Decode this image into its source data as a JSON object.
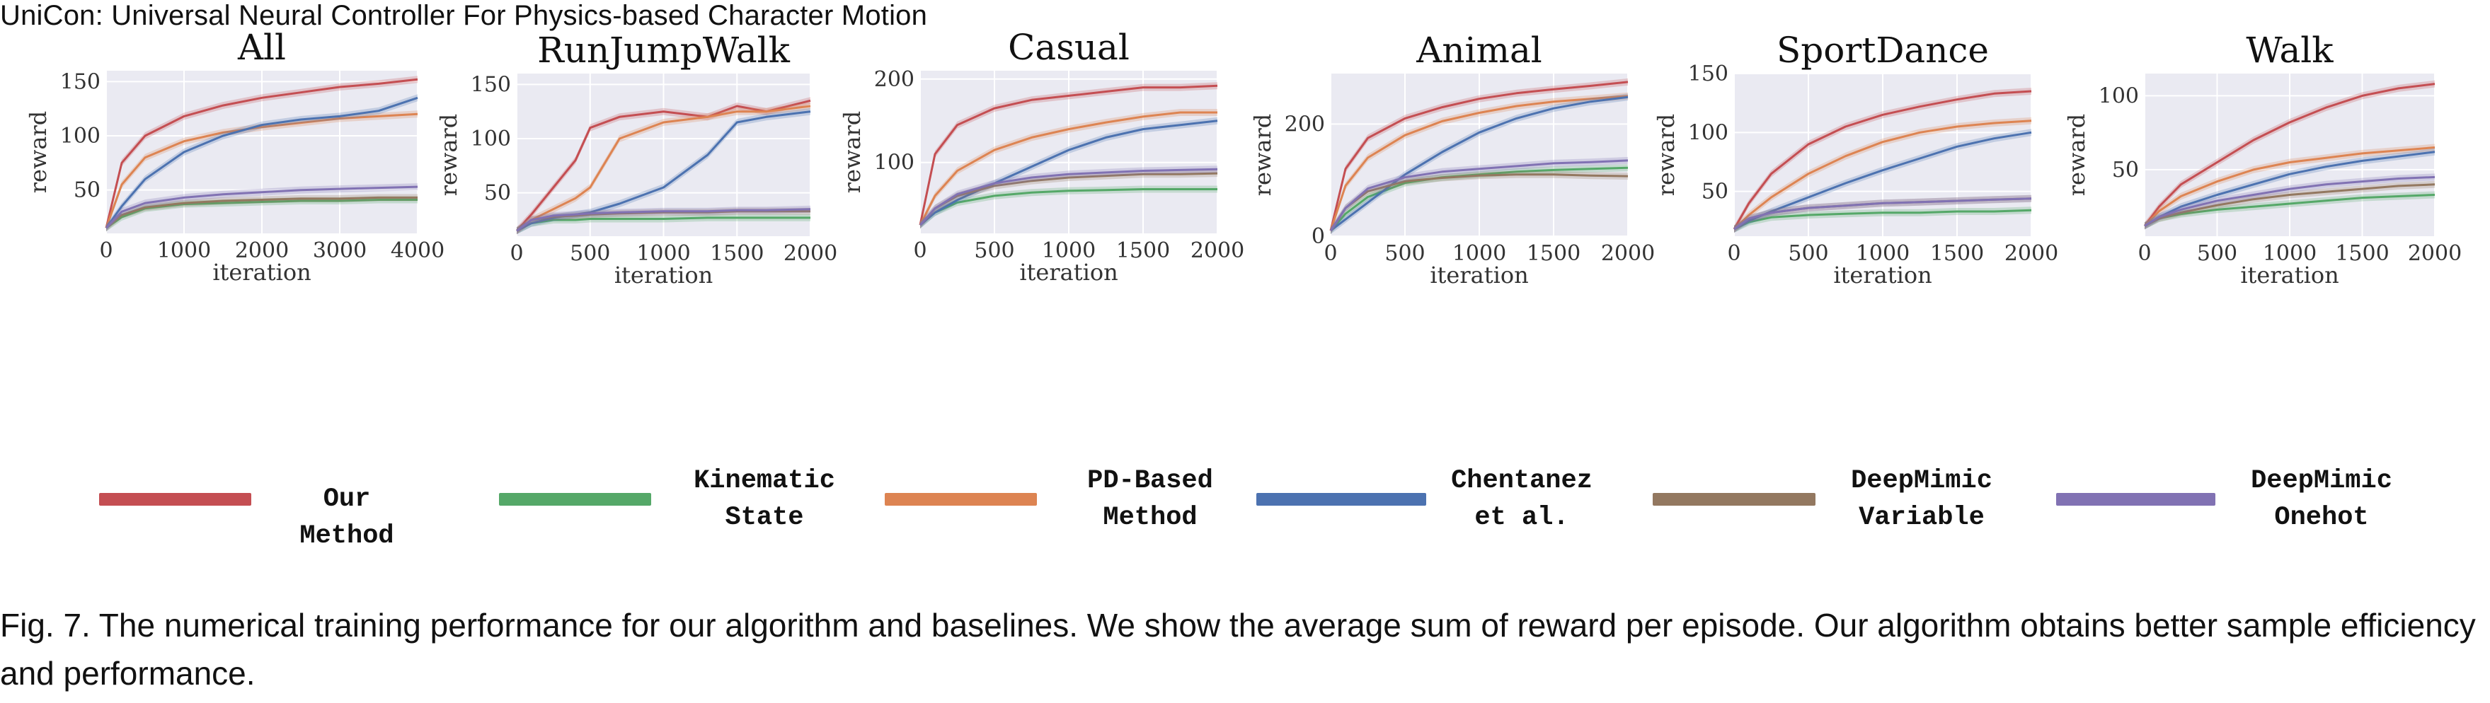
{
  "header": {
    "title": "UniCon: Universal Neural Controller For Physics-based Character Motion"
  },
  "legend": {
    "items": [
      {
        "label": "Our Method",
        "color": "#c44e52"
      },
      {
        "label": "Kinematic\nState",
        "color": "#55a868"
      },
      {
        "label": "PD-Based\nMethod",
        "color": "#dd8452"
      },
      {
        "label": "Chentanez\net al.",
        "color": "#4c72b0"
      },
      {
        "label": "DeepMimic\nVariable",
        "color": "#937860"
      },
      {
        "label": "DeepMimic\nOnehot",
        "color": "#8172b3"
      }
    ]
  },
  "caption": {
    "text": "Fig. 7.  The numerical training performance for our algorithm and baselines. We show the average sum of reward per episode. Our algorithm obtains better sample efficiency and performance."
  },
  "chart_data": [
    {
      "type": "line",
      "title": "All",
      "xlabel": "iteration",
      "ylabel": "reward",
      "xlim": [
        0,
        4000
      ],
      "ylim": [
        10,
        160
      ],
      "xticks": [
        0,
        1000,
        2000,
        3000,
        4000
      ],
      "yticks": [
        50,
        100,
        150
      ],
      "grid": true,
      "series": [
        {
          "color": "#c44e52",
          "x": [
            0,
            200,
            500,
            1000,
            1500,
            2000,
            2500,
            3000,
            3500,
            4000
          ],
          "values": [
            15,
            75,
            100,
            118,
            128,
            135,
            140,
            145,
            148,
            152
          ]
        },
        {
          "color": "#55a868",
          "x": [
            0,
            200,
            500,
            1000,
            1500,
            2000,
            2500,
            3000,
            3500,
            4000
          ],
          "values": [
            15,
            25,
            33,
            37,
            38,
            39,
            40,
            40,
            41,
            41
          ]
        },
        {
          "color": "#dd8452",
          "x": [
            0,
            200,
            500,
            1000,
            1500,
            2000,
            2500,
            3000,
            3500,
            4000
          ],
          "values": [
            15,
            55,
            80,
            95,
            103,
            108,
            112,
            116,
            118,
            120
          ]
        },
        {
          "color": "#4c72b0",
          "x": [
            0,
            200,
            500,
            1000,
            1500,
            2000,
            2500,
            3000,
            3500,
            4000
          ],
          "values": [
            15,
            35,
            60,
            85,
            100,
            110,
            115,
            118,
            123,
            135
          ]
        },
        {
          "color": "#937860",
          "x": [
            0,
            200,
            500,
            1000,
            1500,
            2000,
            2500,
            3000,
            3500,
            4000
          ],
          "values": [
            15,
            27,
            34,
            38,
            40,
            41,
            42,
            42,
            43,
            43
          ]
        },
        {
          "color": "#8172b3",
          "x": [
            0,
            200,
            500,
            1000,
            1500,
            2000,
            2500,
            3000,
            3500,
            4000
          ],
          "values": [
            15,
            30,
            38,
            43,
            46,
            48,
            50,
            51,
            52,
            53
          ]
        }
      ]
    },
    {
      "type": "line",
      "title": "RunJumpWalk",
      "xlabel": "iteration",
      "ylabel": "reward",
      "xlim": [
        0,
        2000
      ],
      "ylim": [
        10,
        160
      ],
      "xticks": [
        0,
        500,
        1000,
        1500,
        2000
      ],
      "yticks": [
        50,
        100,
        150
      ],
      "grid": true,
      "series": [
        {
          "color": "#c44e52",
          "x": [
            0,
            100,
            250,
            400,
            500,
            700,
            1000,
            1300,
            1500,
            1700,
            2000
          ],
          "values": [
            15,
            30,
            55,
            80,
            110,
            120,
            125,
            120,
            130,
            125,
            135
          ]
        },
        {
          "color": "#55a868",
          "x": [
            0,
            100,
            250,
            400,
            500,
            700,
            1000,
            1300,
            1500,
            1700,
            2000
          ],
          "values": [
            15,
            22,
            25,
            25,
            26,
            26,
            26,
            27,
            27,
            27,
            27
          ]
        },
        {
          "color": "#dd8452",
          "x": [
            0,
            100,
            250,
            400,
            500,
            700,
            1000,
            1300,
            1500,
            1700,
            2000
          ],
          "values": [
            15,
            25,
            35,
            45,
            55,
            100,
            115,
            120,
            125,
            125,
            130
          ]
        },
        {
          "color": "#4c72b0",
          "x": [
            0,
            100,
            250,
            400,
            500,
            700,
            1000,
            1300,
            1500,
            1700,
            2000
          ],
          "values": [
            15,
            22,
            27,
            30,
            32,
            40,
            55,
            85,
            115,
            120,
            125
          ]
        },
        {
          "color": "#937860",
          "x": [
            0,
            100,
            250,
            400,
            500,
            700,
            1000,
            1300,
            1500,
            1700,
            2000
          ],
          "values": [
            15,
            25,
            28,
            29,
            30,
            31,
            32,
            32,
            33,
            33,
            33
          ]
        },
        {
          "color": "#8172b3",
          "x": [
            0,
            100,
            250,
            400,
            500,
            700,
            1000,
            1300,
            1500,
            1700,
            2000
          ],
          "values": [
            15,
            25,
            29,
            30,
            31,
            32,
            33,
            33,
            34,
            34,
            35
          ]
        }
      ]
    },
    {
      "type": "line",
      "title": "Casual",
      "xlabel": "iteration",
      "ylabel": "reward",
      "xlim": [
        0,
        2000
      ],
      "ylim": [
        15,
        210
      ],
      "xticks": [
        0,
        500,
        1000,
        1500,
        2000
      ],
      "yticks": [
        100,
        200
      ],
      "grid": true,
      "series": [
        {
          "color": "#c44e52",
          "x": [
            0,
            100,
            250,
            500,
            750,
            1000,
            1250,
            1500,
            1750,
            2000
          ],
          "values": [
            25,
            110,
            145,
            165,
            175,
            180,
            185,
            190,
            190,
            192
          ]
        },
        {
          "color": "#55a868",
          "x": [
            0,
            100,
            250,
            500,
            750,
            1000,
            1250,
            1500,
            1750,
            2000
          ],
          "values": [
            25,
            40,
            52,
            60,
            64,
            66,
            67,
            68,
            68,
            68
          ]
        },
        {
          "color": "#dd8452",
          "x": [
            0,
            100,
            250,
            500,
            750,
            1000,
            1250,
            1500,
            1750,
            2000
          ],
          "values": [
            25,
            60,
            90,
            115,
            130,
            140,
            148,
            155,
            160,
            160
          ]
        },
        {
          "color": "#4c72b0",
          "x": [
            0,
            100,
            250,
            500,
            750,
            1000,
            1250,
            1500,
            1750,
            2000
          ],
          "values": [
            25,
            40,
            55,
            75,
            95,
            115,
            130,
            140,
            145,
            150
          ]
        },
        {
          "color": "#937860",
          "x": [
            0,
            100,
            250,
            500,
            750,
            1000,
            1250,
            1500,
            1750,
            2000
          ],
          "values": [
            25,
            45,
            60,
            72,
            78,
            82,
            84,
            86,
            86,
            87
          ]
        },
        {
          "color": "#8172b3",
          "x": [
            0,
            100,
            250,
            500,
            750,
            1000,
            1250,
            1500,
            1750,
            2000
          ],
          "values": [
            25,
            45,
            62,
            75,
            82,
            86,
            88,
            90,
            91,
            92
          ]
        }
      ]
    },
    {
      "type": "line",
      "title": "Animal",
      "xlabel": "iteration",
      "ylabel": "reward",
      "xlim": [
        0,
        2000
      ],
      "ylim": [
        0,
        290
      ],
      "xticks": [
        0,
        500,
        1000,
        1500,
        2000
      ],
      "yticks": [
        0,
        200
      ],
      "grid": true,
      "series": [
        {
          "color": "#c44e52",
          "x": [
            0,
            100,
            250,
            500,
            750,
            1000,
            1250,
            1500,
            1750,
            2000
          ],
          "values": [
            10,
            120,
            175,
            210,
            230,
            245,
            255,
            262,
            268,
            275
          ]
        },
        {
          "color": "#55a868",
          "x": [
            0,
            100,
            250,
            500,
            750,
            1000,
            1250,
            1500,
            1750,
            2000
          ],
          "values": [
            10,
            40,
            70,
            95,
            105,
            110,
            115,
            118,
            120,
            122
          ]
        },
        {
          "color": "#dd8452",
          "x": [
            0,
            100,
            250,
            500,
            750,
            1000,
            1250,
            1500,
            1750,
            2000
          ],
          "values": [
            10,
            90,
            140,
            180,
            205,
            220,
            232,
            240,
            245,
            250
          ]
        },
        {
          "color": "#4c72b0",
          "x": [
            0,
            100,
            250,
            500,
            750,
            1000,
            1250,
            1500,
            1750,
            2000
          ],
          "values": [
            10,
            30,
            60,
            110,
            150,
            185,
            210,
            228,
            240,
            248
          ]
        },
        {
          "color": "#937860",
          "x": [
            0,
            100,
            250,
            500,
            750,
            1000,
            1250,
            1500,
            1750,
            2000
          ],
          "values": [
            10,
            50,
            80,
            98,
            104,
            108,
            110,
            110,
            108,
            107
          ]
        },
        {
          "color": "#8172b3",
          "x": [
            0,
            100,
            250,
            500,
            750,
            1000,
            1250,
            1500,
            1750,
            2000
          ],
          "values": [
            10,
            50,
            85,
            105,
            115,
            120,
            125,
            130,
            132,
            135
          ]
        }
      ]
    },
    {
      "type": "line",
      "title": "SportDance",
      "xlabel": "iteration",
      "ylabel": "reward",
      "xlim": [
        0,
        2000
      ],
      "ylim": [
        12,
        150
      ],
      "xticks": [
        0,
        500,
        1000,
        1500,
        2000
      ],
      "yticks": [
        50,
        100,
        150
      ],
      "grid": true,
      "series": [
        {
          "color": "#c44e52",
          "x": [
            0,
            100,
            250,
            500,
            750,
            1000,
            1250,
            1500,
            1750,
            2000
          ],
          "values": [
            18,
            40,
            65,
            90,
            105,
            115,
            122,
            128,
            133,
            135
          ]
        },
        {
          "color": "#55a868",
          "x": [
            0,
            100,
            250,
            500,
            750,
            1000,
            1250,
            1500,
            1750,
            2000
          ],
          "values": [
            18,
            24,
            28,
            30,
            31,
            32,
            32,
            33,
            33,
            34
          ]
        },
        {
          "color": "#dd8452",
          "x": [
            0,
            100,
            250,
            500,
            750,
            1000,
            1250,
            1500,
            1750,
            2000
          ],
          "values": [
            18,
            30,
            45,
            65,
            80,
            92,
            100,
            105,
            108,
            110
          ]
        },
        {
          "color": "#4c72b0",
          "x": [
            0,
            100,
            250,
            500,
            750,
            1000,
            1250,
            1500,
            1750,
            2000
          ],
          "values": [
            18,
            25,
            33,
            45,
            57,
            68,
            78,
            88,
            95,
            100
          ]
        },
        {
          "color": "#937860",
          "x": [
            0,
            100,
            250,
            500,
            750,
            1000,
            1250,
            1500,
            1750,
            2000
          ],
          "values": [
            18,
            27,
            32,
            36,
            38,
            40,
            41,
            42,
            43,
            44
          ]
        },
        {
          "color": "#8172b3",
          "x": [
            0,
            100,
            250,
            500,
            750,
            1000,
            1250,
            1500,
            1750,
            2000
          ],
          "values": [
            18,
            27,
            32,
            36,
            38,
            40,
            41,
            42,
            43,
            44
          ]
        }
      ]
    },
    {
      "type": "line",
      "title": "Walk",
      "xlabel": "iteration",
      "ylabel": "reward",
      "xlim": [
        0,
        2000
      ],
      "ylim": [
        5,
        115
      ],
      "xticks": [
        0,
        500,
        1000,
        1500,
        2000
      ],
      "yticks": [
        50,
        100
      ],
      "grid": true,
      "series": [
        {
          "color": "#c44e52",
          "x": [
            0,
            100,
            250,
            500,
            750,
            1000,
            1250,
            1500,
            1750,
            2000
          ],
          "values": [
            12,
            25,
            40,
            55,
            70,
            82,
            92,
            100,
            105,
            108
          ]
        },
        {
          "color": "#55a868",
          "x": [
            0,
            100,
            250,
            500,
            750,
            1000,
            1250,
            1500,
            1750,
            2000
          ],
          "values": [
            12,
            17,
            20,
            23,
            25,
            27,
            29,
            31,
            32,
            33
          ]
        },
        {
          "color": "#dd8452",
          "x": [
            0,
            100,
            250,
            500,
            750,
            1000,
            1250,
            1500,
            1750,
            2000
          ],
          "values": [
            12,
            22,
            32,
            42,
            50,
            55,
            58,
            61,
            63,
            65
          ]
        },
        {
          "color": "#4c72b0",
          "x": [
            0,
            100,
            250,
            500,
            750,
            1000,
            1250,
            1500,
            1750,
            2000
          ],
          "values": [
            12,
            18,
            25,
            33,
            40,
            47,
            52,
            56,
            59,
            62
          ]
        },
        {
          "color": "#937860",
          "x": [
            0,
            100,
            250,
            500,
            750,
            1000,
            1250,
            1500,
            1750,
            2000
          ],
          "values": [
            12,
            17,
            21,
            26,
            30,
            33,
            35,
            37,
            39,
            40
          ]
        },
        {
          "color": "#8172b3",
          "x": [
            0,
            100,
            250,
            500,
            750,
            1000,
            1250,
            1500,
            1750,
            2000
          ],
          "values": [
            12,
            18,
            23,
            29,
            33,
            37,
            40,
            42,
            44,
            45
          ]
        }
      ]
    }
  ]
}
